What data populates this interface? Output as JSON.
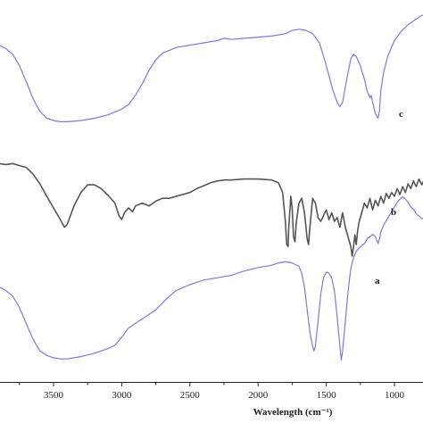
{
  "chart_data": {
    "type": "line",
    "xlabel": "Wavelength (cm⁻¹)",
    "ylabel": "",
    "xlim": [
      3900,
      700
    ],
    "x_reversed": true,
    "grid": false,
    "x_ticks": [
      3500,
      3000,
      2500,
      2000,
      1500,
      1000
    ],
    "tick_labels": [
      "3500",
      "3000",
      "2500",
      "2000",
      "1500",
      "1000"
    ],
    "series": [
      {
        "name": "c",
        "color": "#7b7bdc",
        "points": [
          [
            3900,
            0.8
          ],
          [
            3850,
            0.77
          ],
          [
            3800,
            0.72
          ],
          [
            3750,
            0.62
          ],
          [
            3700,
            0.48
          ],
          [
            3650,
            0.33
          ],
          [
            3600,
            0.22
          ],
          [
            3550,
            0.16
          ],
          [
            3500,
            0.14
          ],
          [
            3450,
            0.13
          ],
          [
            3400,
            0.13
          ],
          [
            3300,
            0.14
          ],
          [
            3200,
            0.16
          ],
          [
            3100,
            0.19
          ],
          [
            3000,
            0.24
          ],
          [
            2950,
            0.28
          ],
          [
            2900,
            0.36
          ],
          [
            2850,
            0.46
          ],
          [
            2800,
            0.58
          ],
          [
            2750,
            0.67
          ],
          [
            2700,
            0.73
          ],
          [
            2600,
            0.78
          ],
          [
            2500,
            0.8
          ],
          [
            2400,
            0.82
          ],
          [
            2300,
            0.84
          ],
          [
            2250,
            0.86
          ],
          [
            2200,
            0.85
          ],
          [
            2100,
            0.86
          ],
          [
            2000,
            0.87
          ],
          [
            1900,
            0.88
          ],
          [
            1800,
            0.9
          ],
          [
            1750,
            0.93
          ],
          [
            1700,
            0.94
          ],
          [
            1650,
            0.93
          ],
          [
            1600,
            0.9
          ],
          [
            1550,
            0.82
          ],
          [
            1500,
            0.62
          ],
          [
            1450,
            0.4
          ],
          [
            1420,
            0.3
          ],
          [
            1400,
            0.26
          ],
          [
            1380,
            0.3
          ],
          [
            1350,
            0.5
          ],
          [
            1320,
            0.68
          ],
          [
            1300,
            0.72
          ],
          [
            1280,
            0.7
          ],
          [
            1250,
            0.62
          ],
          [
            1220,
            0.5
          ],
          [
            1200,
            0.4
          ],
          [
            1180,
            0.34
          ],
          [
            1170,
            0.36
          ],
          [
            1160,
            0.3
          ],
          [
            1140,
            0.2
          ],
          [
            1120,
            0.16
          ],
          [
            1110,
            0.22
          ],
          [
            1100,
            0.4
          ],
          [
            1080,
            0.56
          ],
          [
            1050,
            0.7
          ],
          [
            1000,
            0.84
          ],
          [
            950,
            0.92
          ],
          [
            900,
            0.98
          ],
          [
            850,
            1.02
          ],
          [
            800,
            1.06
          ],
          [
            750,
            1.08
          ],
          [
            700,
            1.1
          ]
        ]
      },
      {
        "name": "b",
        "color": "#555555",
        "points": [
          [
            3900,
            0.96
          ],
          [
            3850,
            0.95
          ],
          [
            3800,
            0.96
          ],
          [
            3750,
            0.94
          ],
          [
            3700,
            0.92
          ],
          [
            3650,
            0.85
          ],
          [
            3600,
            0.75
          ],
          [
            3550,
            0.62
          ],
          [
            3500,
            0.5
          ],
          [
            3450,
            0.38
          ],
          [
            3420,
            0.3
          ],
          [
            3400,
            0.33
          ],
          [
            3350,
            0.52
          ],
          [
            3300,
            0.66
          ],
          [
            3250,
            0.74
          ],
          [
            3200,
            0.74
          ],
          [
            3150,
            0.7
          ],
          [
            3100,
            0.63
          ],
          [
            3050,
            0.55
          ],
          [
            3020,
            0.42
          ],
          [
            3000,
            0.38
          ],
          [
            2980,
            0.45
          ],
          [
            2950,
            0.5
          ],
          [
            2920,
            0.46
          ],
          [
            2900,
            0.52
          ],
          [
            2850,
            0.55
          ],
          [
            2800,
            0.52
          ],
          [
            2750,
            0.57
          ],
          [
            2700,
            0.6
          ],
          [
            2650,
            0.6
          ],
          [
            2600,
            0.62
          ],
          [
            2550,
            0.64
          ],
          [
            2500,
            0.66
          ],
          [
            2450,
            0.7
          ],
          [
            2400,
            0.73
          ],
          [
            2350,
            0.76
          ],
          [
            2300,
            0.78
          ],
          [
            2250,
            0.79
          ],
          [
            2200,
            0.79
          ],
          [
            2100,
            0.8
          ],
          [
            2000,
            0.8
          ],
          [
            1900,
            0.79
          ],
          [
            1850,
            0.76
          ],
          [
            1820,
            0.66
          ],
          [
            1800,
            0.36
          ],
          [
            1790,
            0.12
          ],
          [
            1780,
            0.1
          ],
          [
            1775,
            0.3
          ],
          [
            1760,
            0.62
          ],
          [
            1750,
            0.5
          ],
          [
            1740,
            0.2
          ],
          [
            1730,
            0.15
          ],
          [
            1720,
            0.35
          ],
          [
            1700,
            0.55
          ],
          [
            1680,
            0.6
          ],
          [
            1660,
            0.45
          ],
          [
            1640,
            0.18
          ],
          [
            1630,
            0.12
          ],
          [
            1620,
            0.3
          ],
          [
            1600,
            0.6
          ],
          [
            1580,
            0.55
          ],
          [
            1560,
            0.4
          ],
          [
            1540,
            0.36
          ],
          [
            1520,
            0.42
          ],
          [
            1500,
            0.48
          ],
          [
            1480,
            0.38
          ],
          [
            1460,
            0.45
          ],
          [
            1440,
            0.36
          ],
          [
            1420,
            0.4
          ],
          [
            1400,
            0.3
          ],
          [
            1380,
            0.45
          ],
          [
            1360,
            0.3
          ],
          [
            1340,
            0.2
          ],
          [
            1320,
            0.1
          ],
          [
            1310,
            0.0
          ],
          [
            1300,
            0.1
          ],
          [
            1290,
            0.22
          ],
          [
            1280,
            0.12
          ],
          [
            1270,
            0.26
          ],
          [
            1260,
            0.35
          ],
          [
            1240,
            0.45
          ],
          [
            1220,
            0.55
          ],
          [
            1200,
            0.5
          ],
          [
            1180,
            0.6
          ],
          [
            1160,
            0.48
          ],
          [
            1140,
            0.58
          ],
          [
            1120,
            0.52
          ],
          [
            1100,
            0.62
          ],
          [
            1080,
            0.55
          ],
          [
            1060,
            0.65
          ],
          [
            1040,
            0.6
          ],
          [
            1020,
            0.66
          ],
          [
            1000,
            0.62
          ],
          [
            980,
            0.7
          ],
          [
            960,
            0.64
          ],
          [
            940,
            0.72
          ],
          [
            920,
            0.66
          ],
          [
            900,
            0.75
          ],
          [
            880,
            0.7
          ],
          [
            860,
            0.78
          ],
          [
            840,
            0.72
          ],
          [
            820,
            0.8
          ],
          [
            800,
            0.74
          ],
          [
            780,
            0.8
          ],
          [
            760,
            0.76
          ],
          [
            740,
            0.78
          ],
          [
            720,
            0.75
          ],
          [
            700,
            0.72
          ]
        ]
      },
      {
        "name": "a",
        "color": "#7b7bdc",
        "points": [
          [
            3900,
            0.66
          ],
          [
            3850,
            0.63
          ],
          [
            3800,
            0.58
          ],
          [
            3750,
            0.48
          ],
          [
            3700,
            0.34
          ],
          [
            3650,
            0.2
          ],
          [
            3600,
            0.1
          ],
          [
            3550,
            0.06
          ],
          [
            3500,
            0.04
          ],
          [
            3450,
            0.03
          ],
          [
            3400,
            0.03
          ],
          [
            3300,
            0.05
          ],
          [
            3200,
            0.08
          ],
          [
            3100,
            0.12
          ],
          [
            3050,
            0.15
          ],
          [
            3000,
            0.22
          ],
          [
            2950,
            0.3
          ],
          [
            2900,
            0.34
          ],
          [
            2850,
            0.38
          ],
          [
            2800,
            0.42
          ],
          [
            2750,
            0.46
          ],
          [
            2700,
            0.52
          ],
          [
            2650,
            0.58
          ],
          [
            2600,
            0.63
          ],
          [
            2500,
            0.68
          ],
          [
            2400,
            0.72
          ],
          [
            2300,
            0.74
          ],
          [
            2200,
            0.76
          ],
          [
            2100,
            0.8
          ],
          [
            2000,
            0.83
          ],
          [
            1900,
            0.85
          ],
          [
            1850,
            0.87
          ],
          [
            1800,
            0.88
          ],
          [
            1750,
            0.87
          ],
          [
            1700,
            0.84
          ],
          [
            1680,
            0.78
          ],
          [
            1660,
            0.66
          ],
          [
            1640,
            0.46
          ],
          [
            1620,
            0.26
          ],
          [
            1600,
            0.14
          ],
          [
            1590,
            0.1
          ],
          [
            1580,
            0.14
          ],
          [
            1560,
            0.36
          ],
          [
            1540,
            0.6
          ],
          [
            1520,
            0.74
          ],
          [
            1500,
            0.79
          ],
          [
            1480,
            0.78
          ],
          [
            1460,
            0.74
          ],
          [
            1440,
            0.62
          ],
          [
            1420,
            0.4
          ],
          [
            1400,
            0.14
          ],
          [
            1390,
            0.02
          ],
          [
            1380,
            0.1
          ],
          [
            1360,
            0.36
          ],
          [
            1340,
            0.62
          ],
          [
            1320,
            0.82
          ],
          [
            1300,
            0.92
          ],
          [
            1280,
            0.97
          ],
          [
            1260,
            1.0
          ],
          [
            1240,
            1.02
          ],
          [
            1220,
            1.04
          ],
          [
            1200,
            1.08
          ],
          [
            1180,
            1.1
          ],
          [
            1160,
            1.12
          ],
          [
            1140,
            1.1
          ],
          [
            1120,
            1.04
          ],
          [
            1110,
            1.08
          ],
          [
            1100,
            1.14
          ],
          [
            1080,
            1.2
          ],
          [
            1060,
            1.24
          ],
          [
            1040,
            1.28
          ],
          [
            1020,
            1.32
          ],
          [
            1000,
            1.36
          ],
          [
            980,
            1.4
          ],
          [
            960,
            1.43
          ],
          [
            940,
            1.45
          ],
          [
            920,
            1.43
          ],
          [
            900,
            1.4
          ],
          [
            880,
            1.36
          ],
          [
            860,
            1.34
          ],
          [
            840,
            1.3
          ],
          [
            820,
            1.28
          ],
          [
            800,
            1.26
          ],
          [
            760,
            1.24
          ],
          [
            700,
            1.22
          ]
        ]
      }
    ]
  }
}
